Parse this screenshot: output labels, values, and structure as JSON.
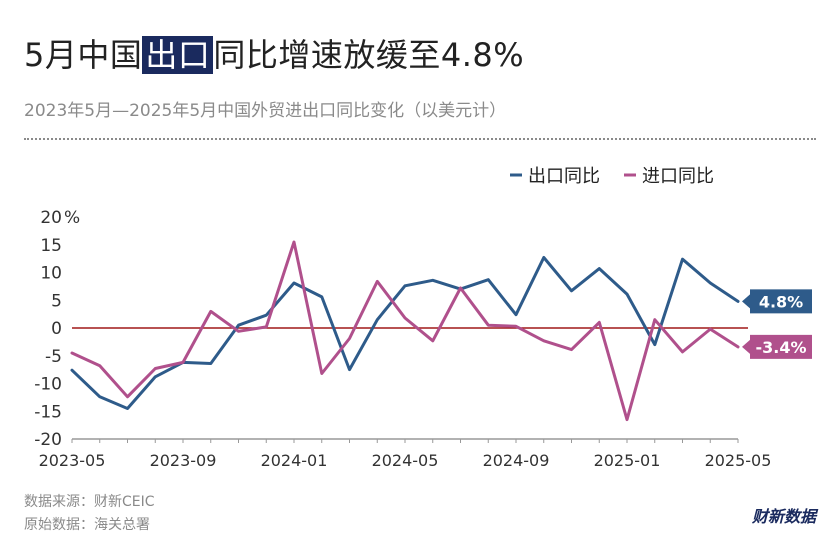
{
  "title": {
    "before": "5月中国",
    "highlight": "出口",
    "after": "同比增速放缓至4.8%"
  },
  "subtitle": "2023年5月—2025年5月中国外贸进出口同比变化（以美元计）",
  "footer": {
    "source": "数据来源：财新CEIC",
    "original": "原始数据：海关总署"
  },
  "brand": "财新数据",
  "colors": {
    "export": "#2e5b8a",
    "import": "#b0508c",
    "zero_line": "#a01818",
    "axis": "#999999",
    "tag_text": "#ffffff"
  },
  "chart_data": {
    "type": "line",
    "y_unit": "%",
    "ylim": [
      -20,
      20
    ],
    "yticks": [
      20,
      15,
      10,
      5,
      0,
      -5,
      -10,
      -15,
      -20
    ],
    "ytick_labels": [
      "20",
      "15",
      "10",
      "5",
      "0",
      "-5",
      "-10",
      "-15",
      "-20"
    ],
    "x": [
      "2023-05",
      "2023-06",
      "2023-07",
      "2023-08",
      "2023-09",
      "2023-10",
      "2023-11",
      "2023-12",
      "2024-01",
      "2024-02",
      "2024-03",
      "2024-04",
      "2024-05",
      "2024-06",
      "2024-07",
      "2024-08",
      "2024-09",
      "2024-10",
      "2024-11",
      "2024-12",
      "2025-01",
      "2025-02",
      "2025-03",
      "2025-04",
      "2025-05"
    ],
    "xtick_labels": [
      {
        "index": 0,
        "label": "2023-05"
      },
      {
        "index": 4,
        "label": "2023-09"
      },
      {
        "index": 8,
        "label": "2024-01"
      },
      {
        "index": 12,
        "label": "2024-05"
      },
      {
        "index": 16,
        "label": "2024-09"
      },
      {
        "index": 20,
        "label": "2025-01"
      },
      {
        "index": 24,
        "label": "2025-05"
      }
    ],
    "legend_position": "top-right",
    "series": [
      {
        "key": "export",
        "name": "出口同比",
        "values": [
          -7.6,
          -12.4,
          -14.5,
          -8.8,
          -6.2,
          -6.4,
          0.5,
          2.3,
          8.1,
          5.6,
          -7.5,
          1.5,
          7.6,
          8.6,
          7.0,
          8.7,
          2.4,
          12.7,
          6.7,
          10.7,
          6.1,
          -3.0,
          12.4,
          8.1,
          4.8
        ],
        "end_label": "4.8%"
      },
      {
        "key": "import",
        "name": "进口同比",
        "values": [
          -4.5,
          -6.8,
          -12.4,
          -7.3,
          -6.2,
          3.0,
          -0.6,
          0.2,
          15.5,
          -8.2,
          -1.9,
          8.4,
          1.8,
          -2.3,
          7.2,
          0.5,
          0.3,
          -2.3,
          -3.9,
          1.0,
          -16.5,
          1.5,
          -4.3,
          -0.2,
          -3.4
        ],
        "end_label": "-3.4%"
      }
    ]
  }
}
